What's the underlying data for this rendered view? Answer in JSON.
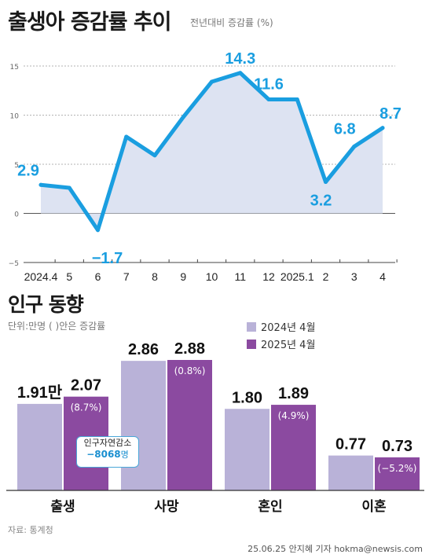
{
  "title": "출생아 증감률 추이",
  "title_note": "전년대비 증감률 (%)",
  "section2_title": "인구 동향",
  "unit_note": "단위:만명 ( )안은  증감률",
  "source": "자료: 통계청",
  "credit": "25.06.25 안지혜 기자 hokma@newsis.com",
  "natural_decrease": {
    "label": "인구자연감소",
    "value": "−8068",
    "unit": "명"
  },
  "colors": {
    "line": "#1a9ee0",
    "area": "#dde3f2",
    "bar_2024": "#b9b2d8",
    "bar_2025": "#8b4aa0",
    "accent_text": "#1a9ee0"
  },
  "chart_data": [
    {
      "type": "area",
      "title": "출생아 증감률 추이",
      "categories": [
        "2024.4",
        "5",
        "6",
        "7",
        "8",
        "9",
        "10",
        "11",
        "12",
        "2025.1",
        "2",
        "3",
        "4"
      ],
      "values": [
        2.9,
        2.6,
        -1.7,
        7.8,
        5.9,
        9.8,
        13.4,
        14.3,
        11.6,
        11.6,
        3.2,
        6.8,
        8.7
      ],
      "data_labels": [
        {
          "index": 0,
          "text": "2.9"
        },
        {
          "index": 2,
          "text": "−1.7"
        },
        {
          "index": 7,
          "text": "14.3"
        },
        {
          "index": 8,
          "text": "11.6"
        },
        {
          "index": 10,
          "text": "3.2"
        },
        {
          "index": 11,
          "text": "6.8"
        },
        {
          "index": 12,
          "text": "8.7"
        }
      ],
      "y_ticks": [
        "15",
        "10",
        "5",
        "0",
        "−5"
      ],
      "ylim": [
        -5,
        15
      ],
      "grid": true
    },
    {
      "type": "bar",
      "title": "인구 동향",
      "categories": [
        "출생",
        "사망",
        "혼인",
        "이혼"
      ],
      "series": [
        {
          "name": "2024년 4월",
          "values": [
            1.91,
            2.86,
            1.8,
            0.77
          ],
          "labels": [
            "1.91만",
            "2.86",
            "1.80",
            "0.77"
          ]
        },
        {
          "name": "2025년 4월",
          "values": [
            2.07,
            2.88,
            1.89,
            0.73
          ],
          "labels": [
            "2.07",
            "2.88",
            "1.89",
            "0.73"
          ],
          "rates": [
            "(8.7%)",
            "(0.8%)",
            "(4.9%)",
            "(−5.2%)"
          ]
        }
      ]
    }
  ]
}
